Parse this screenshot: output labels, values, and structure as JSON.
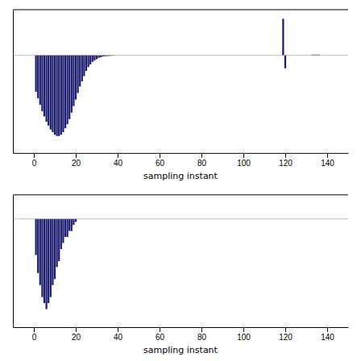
{
  "chart_data": [
    {
      "type": "bar",
      "xlabel": "sampling instant",
      "color": "#1a1a6e",
      "tick_labels": "x",
      "xlim": [
        -10,
        150
      ],
      "xticks": [
        0,
        20,
        40,
        60,
        80,
        100,
        120,
        140
      ],
      "ylim": [
        -7.5,
        3.5
      ],
      "x": [
        1,
        2,
        3,
        4,
        5,
        6,
        7,
        8,
        9,
        10,
        11,
        12,
        13,
        14,
        15,
        16,
        17,
        18,
        19,
        20,
        21,
        22,
        23,
        24,
        25,
        26,
        27,
        28,
        29,
        30,
        31,
        32,
        33,
        34,
        35,
        36,
        37,
        38,
        39,
        40,
        41,
        42,
        43,
        44,
        45,
        46,
        47,
        48,
        49,
        50,
        51,
        52,
        53,
        54,
        55,
        56,
        57,
        58,
        59,
        60,
        61,
        62,
        63,
        64,
        65,
        66,
        67,
        68,
        69,
        70,
        71,
        72,
        73,
        74,
        75,
        76,
        77,
        78,
        79,
        80,
        81,
        82,
        83,
        84,
        85,
        86,
        87,
        88,
        89,
        90,
        91,
        92,
        93,
        94,
        95,
        96,
        97,
        98,
        99,
        100,
        101,
        102,
        103,
        104,
        105,
        106,
        107,
        108,
        109,
        110,
        111,
        112,
        113,
        114,
        115,
        116,
        117,
        118,
        119,
        120,
        121,
        122,
        123,
        124,
        125,
        126,
        127,
        128,
        129,
        130,
        131,
        132,
        133,
        134,
        135,
        136,
        137,
        138,
        139,
        140,
        141,
        142,
        143,
        144
      ],
      "values": [
        -2.8,
        -3.3,
        -3.8,
        -4.3,
        -4.7,
        -5.1,
        -5.4,
        -5.7,
        -5.9,
        -6.1,
        -6.2,
        -6.2,
        -6.1,
        -5.9,
        -5.6,
        -5.3,
        -4.9,
        -4.4,
        -3.9,
        -3.4,
        -2.9,
        -2.4,
        -2.0,
        -1.6,
        -1.2,
        -0.9,
        -0.7,
        -0.5,
        -0.4,
        -0.3,
        -0.2,
        -0.15,
        -0.1,
        -0.08,
        -0.06,
        -0.05,
        -0.04,
        -0.03,
        0.0,
        0.0,
        0.0,
        0.0,
        0.0,
        0.0,
        0.0,
        0.0,
        0.0,
        0.0,
        0.0,
        0.0,
        0.0,
        0.0,
        0.0,
        0.0,
        0.0,
        0.0,
        0.0,
        0.0,
        0.0,
        0.0,
        0.0,
        0.0,
        0.0,
        0.0,
        0.0,
        0.0,
        0.0,
        0.0,
        0.0,
        0.0,
        0.0,
        0.0,
        0.0,
        0.0,
        0.0,
        0.0,
        0.0,
        0.0,
        0.0,
        0.0,
        0.0,
        0.0,
        0.0,
        0.0,
        0.0,
        0.0,
        0.0,
        0.0,
        0.0,
        0.0,
        0.0,
        0.0,
        0.0,
        0.0,
        0.0,
        0.0,
        0.0,
        0.0,
        0.0,
        0.0,
        0.0,
        0.0,
        0.0,
        0.0,
        0.0,
        0.0,
        0.0,
        0.0,
        0.0,
        0.0,
        0.0,
        0.0,
        0.0,
        0.0,
        0.0,
        0.0,
        0.0,
        0.0,
        2.8,
        -1.0,
        0.0,
        0.0,
        0.0,
        0.0,
        0.0,
        0.0,
        0.0,
        0.0,
        0.0,
        0.0,
        0.0,
        0.0,
        0.05,
        0.05,
        0.05,
        0.05,
        0.0,
        0.0,
        0.0,
        0.0,
        0.0,
        0.0,
        0.0,
        0.0
      ]
    },
    {
      "type": "bar",
      "xlabel": "sampling instant",
      "color": "#1a1a6e",
      "tick_labels": "x",
      "xlim": [
        -10,
        150
      ],
      "xticks": [
        0,
        20,
        40,
        60,
        80,
        100,
        120,
        140
      ],
      "ylim": [
        -0.18,
        0.04
      ],
      "x": [
        1,
        2,
        3,
        4,
        5,
        6,
        7,
        8,
        9,
        10,
        11,
        12,
        13,
        14,
        15,
        16,
        17,
        18,
        19,
        20,
        21,
        22,
        23,
        24,
        25,
        26,
        27,
        28,
        29,
        30,
        31,
        32,
        33,
        34,
        35,
        36,
        37,
        38,
        39,
        40,
        41,
        42,
        43,
        44,
        45,
        46,
        47,
        48,
        49,
        50,
        51,
        52,
        53,
        54,
        55,
        56,
        57,
        58,
        59,
        60,
        61,
        62,
        63,
        64,
        65,
        66,
        67,
        68,
        69,
        70,
        71,
        72,
        73,
        74,
        75,
        76,
        77,
        78,
        79,
        80,
        81,
        82,
        83,
        84,
        85,
        86,
        87,
        88,
        89,
        90,
        91,
        92,
        93,
        94,
        95,
        96,
        97,
        98,
        99,
        100,
        101,
        102,
        103,
        104,
        105,
        106,
        107,
        108,
        109,
        110,
        111,
        112,
        113,
        114,
        115,
        116,
        117,
        118,
        119,
        120,
        121,
        122,
        123,
        124,
        125,
        126,
        127,
        128,
        129,
        130,
        131,
        132,
        133,
        134,
        135,
        136,
        137,
        138,
        139,
        140,
        141,
        142,
        143,
        144
      ],
      "values": [
        -0.06,
        -0.09,
        -0.11,
        -0.13,
        -0.14,
        -0.15,
        -0.14,
        -0.13,
        -0.11,
        -0.1,
        -0.08,
        -0.07,
        -0.05,
        -0.04,
        -0.03,
        -0.03,
        -0.02,
        -0.02,
        -0.01,
        -0.005,
        0.0,
        0.0,
        0.0,
        0.0,
        0.0,
        0.0,
        0.0,
        0.0,
        0.0,
        0.0,
        0.0,
        0.0,
        0.0,
        0.0,
        0.0,
        0.0,
        0.0,
        0.0,
        0.0,
        0.0,
        0.0,
        0.0,
        0.0,
        0.0,
        0.0,
        0.0,
        0.0,
        0.0,
        0.0,
        0.0,
        0.0,
        0.0,
        0.0,
        0.0,
        0.0,
        0.0,
        0.0,
        0.0,
        0.0,
        0.0,
        0.0,
        0.0,
        0.0,
        0.0,
        0.0,
        0.0,
        0.0,
        0.0,
        0.0,
        0.0,
        0.0,
        0.0,
        0.0,
        0.0,
        0.0,
        0.0,
        0.0,
        0.0,
        0.0,
        0.0,
        0.0,
        0.0,
        0.0,
        0.0,
        0.0,
        0.0,
        0.0,
        0.0,
        0.0,
        0.0,
        0.0,
        0.0,
        0.0,
        0.0,
        0.0,
        0.0,
        0.0,
        0.0,
        0.0,
        0.0,
        0.0,
        0.0,
        0.0,
        0.0,
        0.0,
        0.0,
        0.0,
        0.0,
        0.0,
        0.0,
        0.0,
        0.0,
        0.0,
        0.0,
        0.0,
        0.0,
        0.0,
        0.0,
        0.0,
        0.0,
        0.0,
        0.0,
        0.0,
        0.0,
        0.0,
        0.0,
        0.0,
        0.0,
        0.0,
        0.0,
        0.0,
        0.0,
        0.0,
        0.0,
        0.0,
        0.0,
        0.0,
        0.0,
        0.0,
        0.0,
        0.0,
        0.0,
        0.0,
        0.0
      ]
    }
  ]
}
